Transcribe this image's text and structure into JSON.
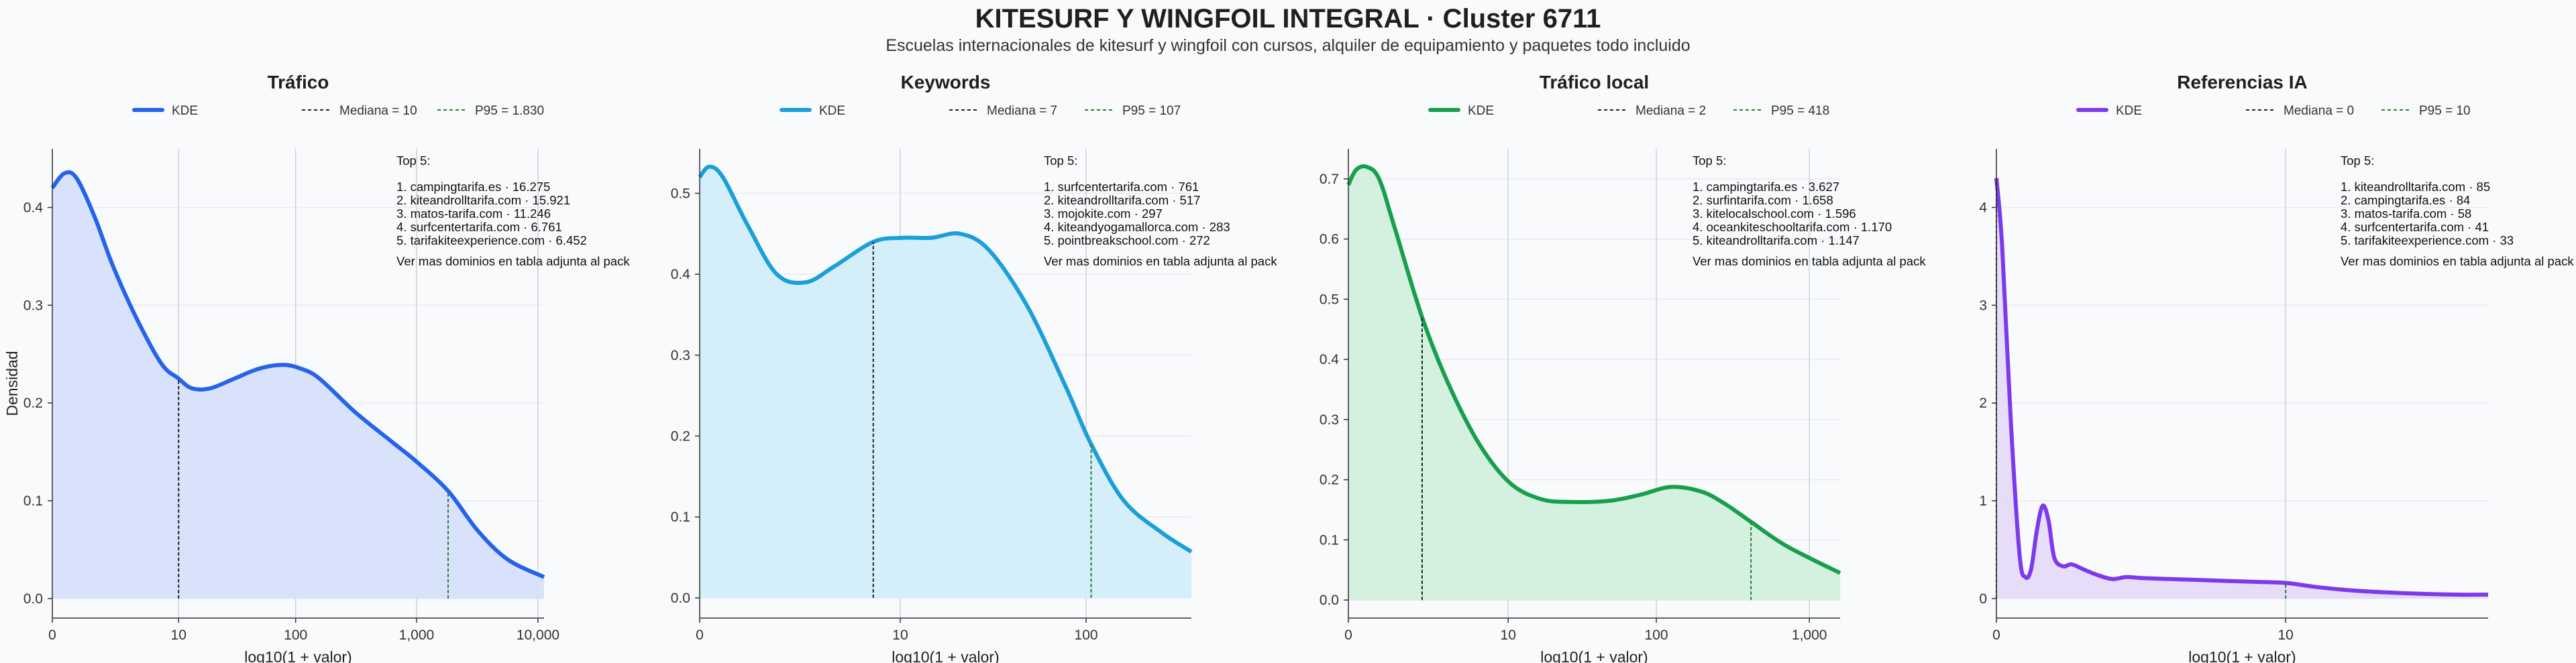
{
  "title": "KITESURF Y WINGFOIL INTEGRAL · Cluster 6711",
  "subtitle": "Escuelas internacionales de kitesurf y wingfoil con cursos, alquiler de equipamiento y paquetes todo incluido",
  "chart_data": [
    {
      "type": "area",
      "title": "Tráfico",
      "color": "#2563eb",
      "fill": "#d6e1fb",
      "xlabel": "log10(1 + valor)",
      "ylabel": "Densidad",
      "xlim": [
        0,
        4.05
      ],
      "ylim": [
        -0.02,
        0.46
      ],
      "xticks": [
        {
          "v": 0,
          "label": "0"
        },
        {
          "v": 1.04,
          "label": "10"
        },
        {
          "v": 2.004,
          "label": "100"
        },
        {
          "v": 3.0,
          "label": "1,000"
        },
        {
          "v": 4.0,
          "label": "10,000"
        }
      ],
      "yticks": [
        {
          "v": 0.0,
          "label": "0.0"
        },
        {
          "v": 0.1,
          "label": "0.1"
        },
        {
          "v": 0.2,
          "label": "0.2"
        },
        {
          "v": 0.3,
          "label": "0.3"
        },
        {
          "v": 0.4,
          "label": "0.4"
        }
      ],
      "legend": {
        "kde": "KDE",
        "median": "Mediana = 10",
        "p95": "P95 = 1.830"
      },
      "median_x": 1.04,
      "p95_x": 3.26,
      "x": [
        0,
        0.1,
        0.2,
        0.35,
        0.5,
        0.7,
        0.9,
        1.04,
        1.15,
        1.3,
        1.5,
        1.7,
        1.9,
        2.05,
        2.2,
        2.5,
        2.8,
        3.0,
        3.26,
        3.5,
        3.75,
        4.05
      ],
      "y": [
        0.42,
        0.435,
        0.43,
        0.39,
        0.34,
        0.285,
        0.24,
        0.225,
        0.215,
        0.215,
        0.225,
        0.235,
        0.239,
        0.235,
        0.225,
        0.19,
        0.16,
        0.14,
        0.11,
        0.07,
        0.04,
        0.022
      ],
      "top5": {
        "heading": "Top 5:",
        "items": [
          "1. campingtarifa.es · 16.275",
          "2. kiteandrolltarifa.com · 15.921",
          "3. matos-tarifa.com · 11.246",
          "4. surfcentertarifa.com · 6.761",
          "5. tarifakiteexperience.com · 6.452"
        ],
        "footer": "Ver mas dominios en tabla adjunta al pack"
      }
    },
    {
      "type": "area",
      "title": "Keywords",
      "color": "#1a9fd8",
      "fill": "#d3eefa",
      "xlabel": "log10(1 + valor)",
      "ylabel": "",
      "xlim": [
        0,
        2.55
      ],
      "ylim": [
        -0.025,
        0.555
      ],
      "xticks": [
        {
          "v": 0,
          "label": "0"
        },
        {
          "v": 1.04,
          "label": "10"
        },
        {
          "v": 2.004,
          "label": "100"
        }
      ],
      "yticks": [
        {
          "v": 0.0,
          "label": "0.0"
        },
        {
          "v": 0.1,
          "label": "0.1"
        },
        {
          "v": 0.2,
          "label": "0.2"
        },
        {
          "v": 0.3,
          "label": "0.3"
        },
        {
          "v": 0.4,
          "label": "0.4"
        },
        {
          "v": 0.5,
          "label": "0.5"
        }
      ],
      "legend": {
        "kde": "KDE",
        "median": "Mediana = 7",
        "p95": "P95 = 107"
      },
      "median_x": 0.9,
      "p95_x": 2.03,
      "x": [
        0,
        0.05,
        0.12,
        0.25,
        0.4,
        0.55,
        0.7,
        0.9,
        1.05,
        1.2,
        1.35,
        1.5,
        1.7,
        1.9,
        2.03,
        2.2,
        2.4,
        2.55
      ],
      "y": [
        0.52,
        0.533,
        0.52,
        0.46,
        0.4,
        0.39,
        0.41,
        0.44,
        0.445,
        0.445,
        0.45,
        0.43,
        0.36,
        0.26,
        0.19,
        0.12,
        0.08,
        0.057
      ],
      "top5": {
        "heading": "Top 5:",
        "items": [
          "1. surfcentertarifa.com · 761",
          "2. kiteandrolltarifa.com · 517",
          "3. mojokite.com · 297",
          "4. kiteandyogamallorca.com · 283",
          "5. pointbreakschool.com · 272"
        ],
        "footer": "Ver mas dominios en tabla adjunta al pack"
      }
    },
    {
      "type": "area",
      "title": "Tráfico local",
      "color": "#16a04b",
      "fill": "#d2efdc",
      "xlabel": "log10(1 + valor)",
      "ylabel": "",
      "xlim": [
        0,
        3.2
      ],
      "ylim": [
        -0.03,
        0.75
      ],
      "xticks": [
        {
          "v": 0,
          "label": "0"
        },
        {
          "v": 1.04,
          "label": "10"
        },
        {
          "v": 2.004,
          "label": "100"
        },
        {
          "v": 3.0,
          "label": "1,000"
        }
      ],
      "yticks": [
        {
          "v": 0.0,
          "label": "0.0"
        },
        {
          "v": 0.1,
          "label": "0.1"
        },
        {
          "v": 0.2,
          "label": "0.2"
        },
        {
          "v": 0.3,
          "label": "0.3"
        },
        {
          "v": 0.4,
          "label": "0.4"
        },
        {
          "v": 0.5,
          "label": "0.5"
        },
        {
          "v": 0.6,
          "label": "0.6"
        },
        {
          "v": 0.7,
          "label": "0.7"
        }
      ],
      "legend": {
        "kde": "KDE",
        "median": "Mediana = 2",
        "p95": "P95 = 418"
      },
      "median_x": 0.48,
      "p95_x": 2.62,
      "x": [
        0,
        0.05,
        0.12,
        0.2,
        0.3,
        0.48,
        0.65,
        0.85,
        1.05,
        1.25,
        1.45,
        1.7,
        1.9,
        2.1,
        2.3,
        2.45,
        2.62,
        2.85,
        3.2
      ],
      "y": [
        0.69,
        0.715,
        0.72,
        0.7,
        0.62,
        0.47,
        0.36,
        0.26,
        0.195,
        0.168,
        0.163,
        0.165,
        0.175,
        0.188,
        0.18,
        0.16,
        0.13,
        0.09,
        0.045
      ],
      "top5": {
        "heading": "Top 5:",
        "items": [
          "1. campingtarifa.es · 3.627",
          "2. surfintarifa.com · 1.658",
          "3. kitelocalschool.com · 1.596",
          "4. oceankiteschooltarifa.com · 1.170",
          "5. kiteandrolltarifa.com · 1.147"
        ],
        "footer": "Ver mas dominios en tabla adjunta al pack"
      }
    },
    {
      "type": "area",
      "title": "Referencias IA",
      "color": "#7c3aed",
      "fill": "#e6dbf9",
      "xlabel": "log10(1 + valor)",
      "ylabel": "",
      "xlim": [
        0,
        1.7
      ],
      "ylim": [
        -0.2,
        4.6
      ],
      "xticks": [
        {
          "v": 0,
          "label": "0"
        },
        {
          "v": 1.0,
          "label": "10"
        }
      ],
      "yticks": [
        {
          "v": 0,
          "label": "0"
        },
        {
          "v": 1,
          "label": "1"
        },
        {
          "v": 2,
          "label": "2"
        },
        {
          "v": 3,
          "label": "3"
        },
        {
          "v": 4,
          "label": "4"
        }
      ],
      "legend": {
        "kde": "KDE",
        "median": "Mediana = 0",
        "p95": "P95 = 10"
      },
      "median_x": 0,
      "p95_x": 1.0,
      "x": [
        0,
        0.02,
        0.05,
        0.08,
        0.1,
        0.12,
        0.14,
        0.16,
        0.18,
        0.2,
        0.23,
        0.26,
        0.3,
        0.35,
        0.4,
        0.45,
        0.5,
        0.6,
        0.7,
        0.8,
        0.9,
        1.0,
        1.1,
        1.2,
        1.3,
        1.45,
        1.6,
        1.7
      ],
      "y": [
        4.3,
        3.6,
        1.8,
        0.45,
        0.22,
        0.3,
        0.7,
        0.95,
        0.8,
        0.42,
        0.33,
        0.35,
        0.3,
        0.24,
        0.2,
        0.22,
        0.21,
        0.2,
        0.19,
        0.18,
        0.17,
        0.16,
        0.12,
        0.09,
        0.07,
        0.05,
        0.04,
        0.04
      ],
      "top5": {
        "heading": "Top 5:",
        "items": [
          "1. kiteandrolltarifa.com · 85",
          "2. campingtarifa.es · 84",
          "3. matos-tarifa.com · 58",
          "4. surfcentertarifa.com · 41",
          "5. tarifakiteexperience.com · 33"
        ],
        "footer": "Ver mas dominios en tabla adjunta al pack"
      }
    }
  ]
}
